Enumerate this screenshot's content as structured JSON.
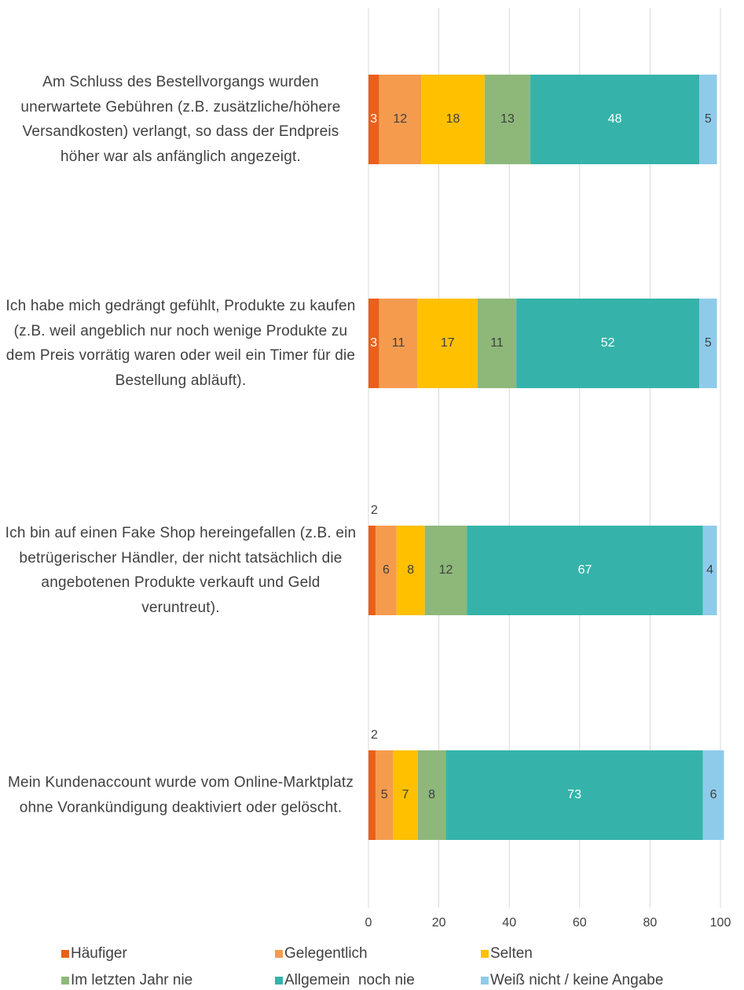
{
  "chart_data": {
    "type": "stacked-bar-horizontal",
    "categories": [
      "Am Schluss des Bestellvorgangs wurden unerwartete Gebühren (z.B. zusätzliche/höhere Versandkosten) verlangt, so dass der Endpreis höher war als anfänglich angezeigt.",
      "Ich habe mich gedrängt gefühlt, Produkte zu kaufen (z.B. weil angeblich nur noch wenige Produkte zu dem Preis vorrätig waren oder weil ein Timer für die Bestellung abläuft).",
      "Ich bin auf einen Fake Shop hereingefallen (z.B. ein betrügerischer Händler, der nicht tatsächlich die angebotenen Produkte verkauft und Geld veruntreut).",
      "Mein Kundenaccount wurde vom Online-Marktplatz ohne Vorankündigung deaktiviert oder gelöscht."
    ],
    "series": [
      {
        "name": "Häufiger",
        "color": "#e8601c",
        "values": [
          3,
          3,
          2,
          2
        ]
      },
      {
        "name": "Gelegentlich",
        "color": "#f59b4e",
        "values": [
          12,
          11,
          6,
          5
        ]
      },
      {
        "name": "Selten",
        "color": "#ffc000",
        "values": [
          18,
          17,
          8,
          7
        ]
      },
      {
        "name": "Im letzten Jahr nie",
        "color": "#8db87a",
        "values": [
          13,
          11,
          12,
          8
        ]
      },
      {
        "name": "Allgemein  noch nie",
        "color": "#35b3aa",
        "values": [
          48,
          52,
          67,
          73
        ]
      },
      {
        "name": "Weiß nicht / keine Angabe",
        "color": "#8ecbea",
        "values": [
          5,
          5,
          4,
          6
        ]
      }
    ],
    "xlim": [
      0,
      100
    ],
    "xticks": [
      0,
      20,
      40,
      60,
      80,
      100
    ],
    "grid": true
  }
}
